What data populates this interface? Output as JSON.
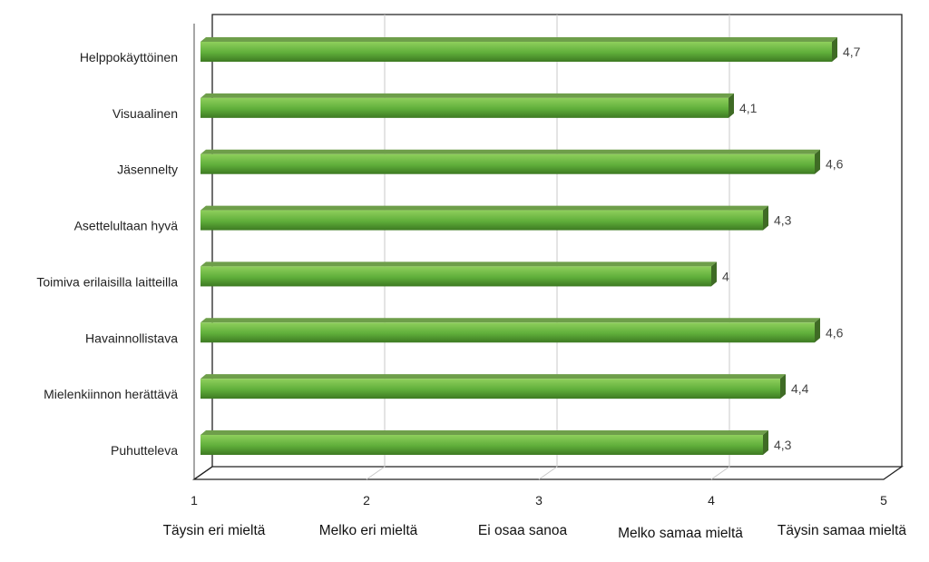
{
  "chart_data": {
    "type": "bar",
    "orientation": "horizontal",
    "categories": [
      "Helppokäyttöinen",
      "Visuaalinen",
      "Jäsennelty",
      "Asettelultaan hyvä",
      "Toimiva erilaisilla laitteilla",
      "Havainnollistava",
      "Mielenkiinnon herättävä",
      "Puhutteleva"
    ],
    "values": [
      4.7,
      4.1,
      4.6,
      4.3,
      4.0,
      4.6,
      4.4,
      4.3
    ],
    "data_labels": [
      "4,7",
      "4,1",
      "4,6",
      "4,3",
      "4",
      "4,6",
      "4,4",
      "4,3"
    ],
    "xlim": [
      1,
      5
    ],
    "x_ticks": [
      1,
      2,
      3,
      4,
      5
    ],
    "x_tick_labels": [
      "1",
      "2",
      "3",
      "4",
      "5"
    ],
    "x_scale_labels": [
      "Täysin eri mieltä",
      "Melko eri mieltä",
      "Ei osaa sanoa",
      "Melko samaa mieltä",
      "Täysin samaa mieltä"
    ],
    "grid": "vertical",
    "style": "3d-bars",
    "colors": {
      "bar_light": "#8fcf5c",
      "bar_mid": "#5fae3a",
      "bar_dark": "#3d7a22",
      "bar_top": "#6e9e4a",
      "bar_side": "#3f6b25",
      "grid": "#c8c8c8",
      "axis": "#222222"
    }
  }
}
